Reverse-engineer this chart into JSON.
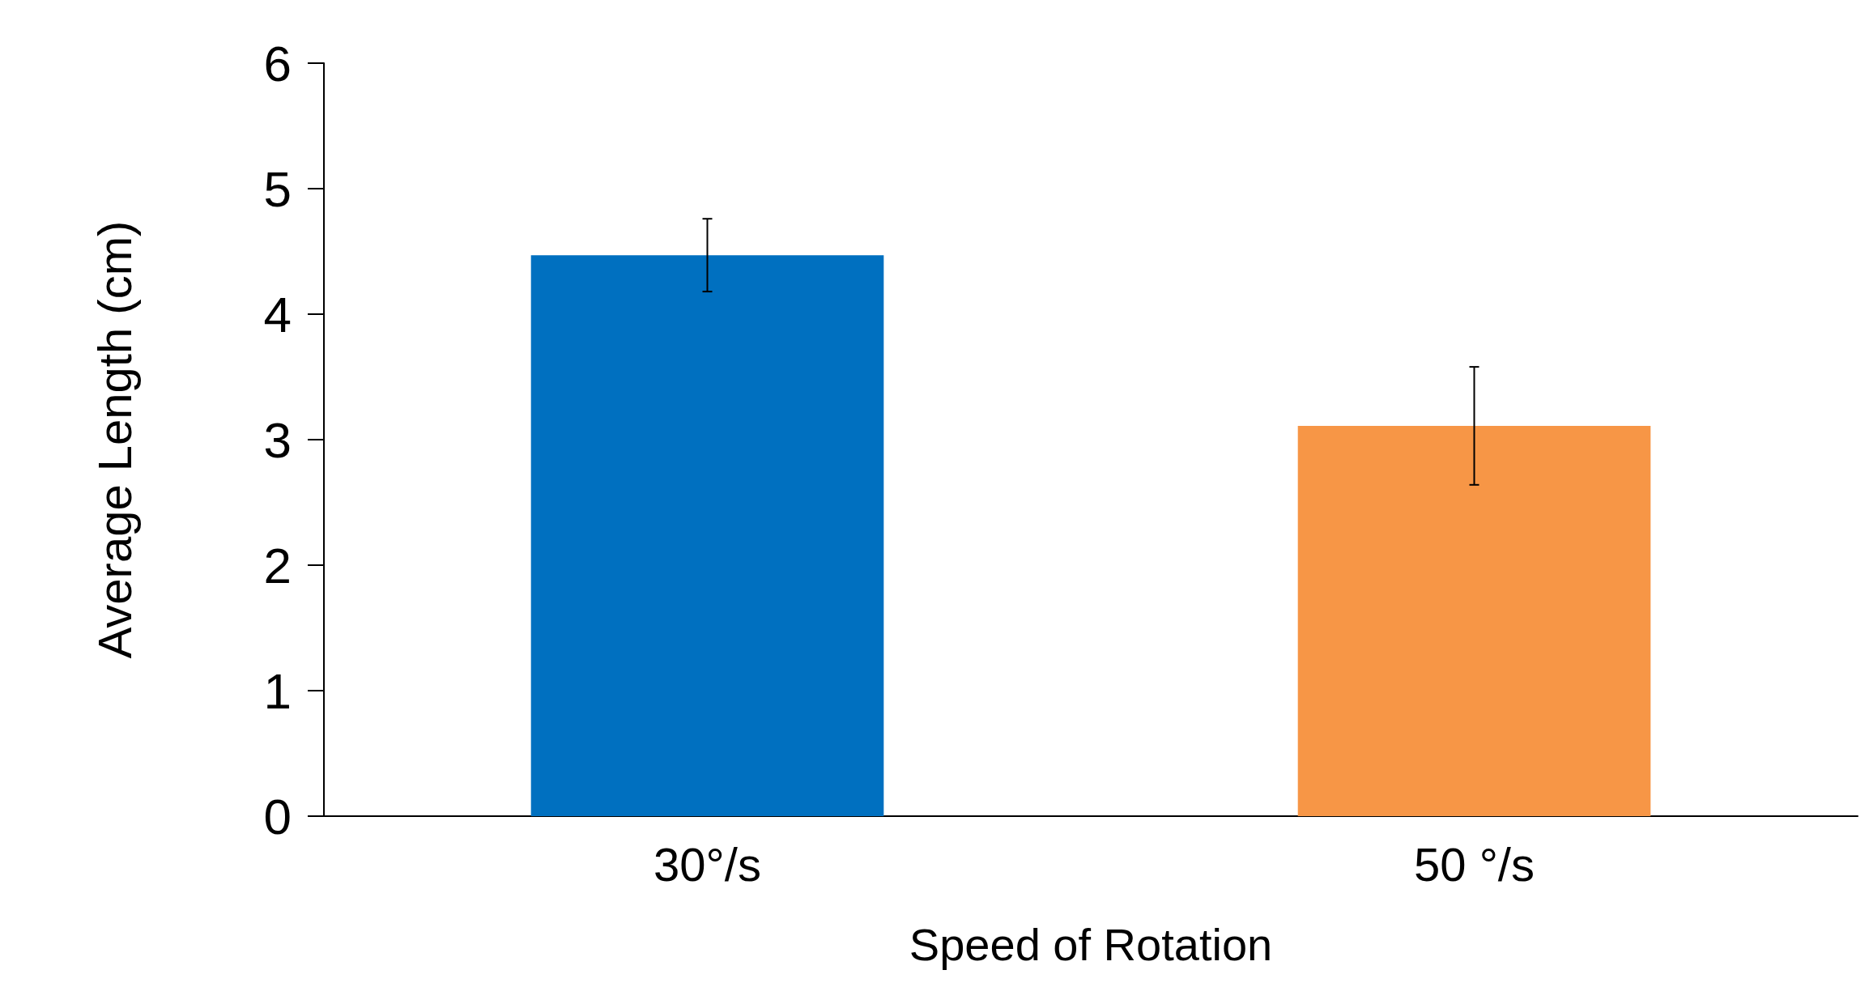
{
  "chart_data": {
    "type": "bar",
    "xlabel": "Speed of Rotation",
    "ylabel": "Average Length (cm)",
    "categories": [
      "30°/s",
      "50 °/s"
    ],
    "values": [
      4.47,
      3.11
    ],
    "colors": [
      "#0070c0",
      "#f79646"
    ],
    "errors": [
      0.29,
      0.47
    ],
    "ylim": [
      0,
      6
    ],
    "yticks": [
      0,
      1,
      2,
      3,
      4,
      5,
      6
    ],
    "grid": false
  }
}
